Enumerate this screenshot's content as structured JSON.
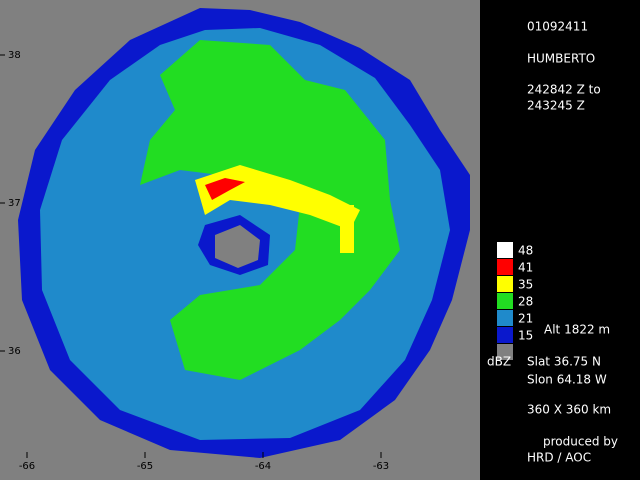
{
  "header": {
    "date": "01092411",
    "storm": "HUMBERTO",
    "time_from": "242842 Z to",
    "time_to": "243245 Z"
  },
  "axes": {
    "x_ticks": [
      "-66",
      "-65",
      "-64",
      "-63"
    ],
    "y_ticks": [
      "38",
      "37",
      "36"
    ]
  },
  "legend": {
    "items": [
      {
        "label": "48",
        "color": "#ffffff"
      },
      {
        "label": "41",
        "color": "#ff0000"
      },
      {
        "label": "35",
        "color": "#ffff00"
      },
      {
        "label": "28",
        "color": "#22dd22"
      },
      {
        "label": "21",
        "color": "#1f8acb"
      },
      {
        "label": "15",
        "color": "#0a18cc"
      }
    ],
    "no_data_color": "#808080",
    "unit": "dBZ",
    "altitude": "Alt  1822 m"
  },
  "info": {
    "slat": "Slat   36.75 N",
    "slon": "Slon   64.18 W",
    "domain": "360 X 360 km",
    "produced_by": "produced by",
    "producer": "HRD / AOC"
  }
}
